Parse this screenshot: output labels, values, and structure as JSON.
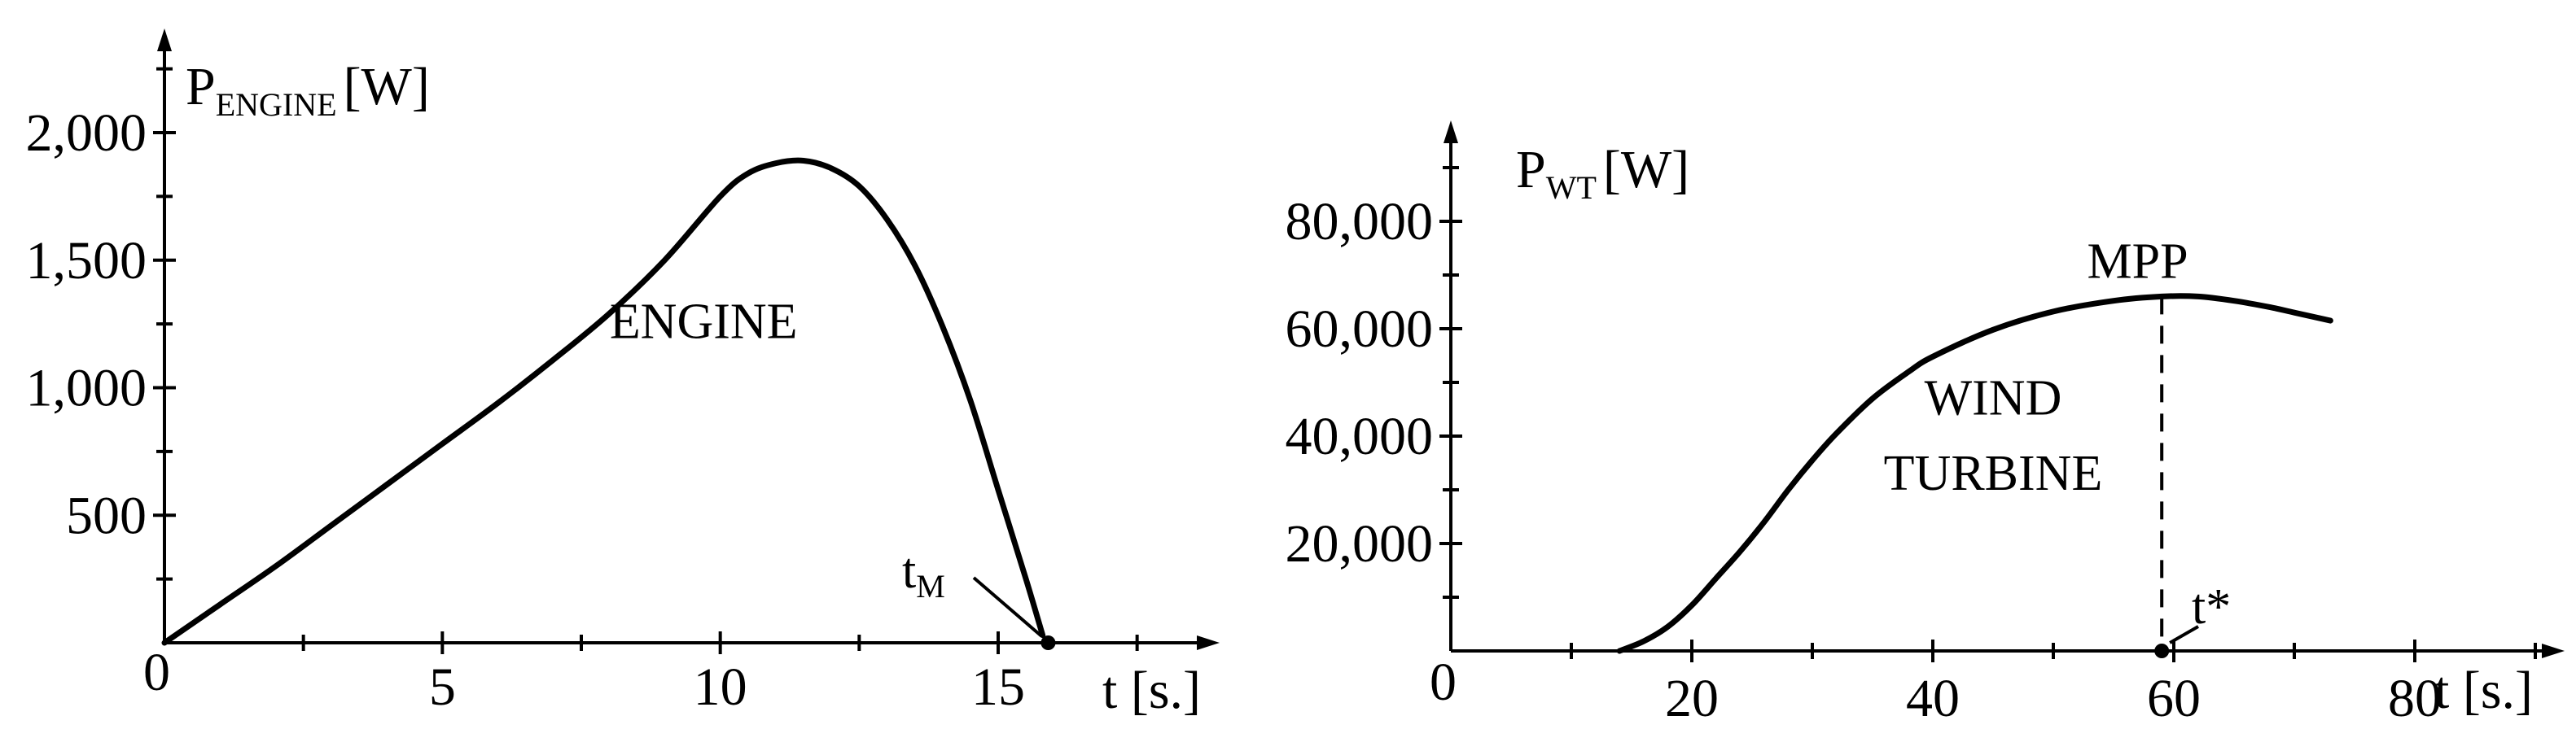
{
  "chart_data": [
    {
      "type": "line",
      "ylabel_main": "P",
      "ylabel_sub": "ENGINE",
      "ylabel_unit": "[W]",
      "xlabel": "t [s.]",
      "origin_label": "0",
      "x_ticks": [
        {
          "value": 5,
          "label": "5"
        },
        {
          "value": 10,
          "label": "10"
        },
        {
          "value": 15,
          "label": "15"
        }
      ],
      "y_ticks": [
        {
          "value": 500,
          "label": "500"
        },
        {
          "value": 1000,
          "label": "1,000"
        },
        {
          "value": 1500,
          "label": "1,500"
        },
        {
          "value": 2000,
          "label": "2,000"
        }
      ],
      "xlim": [
        0,
        19
      ],
      "ylim": [
        0,
        2400
      ],
      "minor_x_step": 2.5,
      "minor_y_step": 250,
      "series": [
        {
          "x": [
            0,
            1,
            2,
            3,
            4,
            5,
            6,
            7,
            8,
            9,
            10,
            10.5,
            11,
            11.5,
            12,
            12.5,
            13,
            13.5,
            14,
            14.5,
            15,
            15.5,
            15.8
          ],
          "y": [
            0,
            150,
            300,
            460,
            620,
            780,
            940,
            1110,
            1290,
            1500,
            1750,
            1840,
            1880,
            1890,
            1860,
            1790,
            1660,
            1480,
            1240,
            950,
            600,
            250,
            30
          ]
        }
      ],
      "annotations": {
        "region_label": {
          "text": "ENGINE",
          "x": 9.7,
          "y": 1195
        },
        "point_label_main": "t",
        "point_label_sub": "M",
        "point": {
          "x": 15.9,
          "y": 0
        }
      }
    },
    {
      "type": "line",
      "ylabel_main": "P",
      "ylabel_sub": "WT",
      "ylabel_unit": "[W]",
      "xlabel": "t [s.]",
      "origin_label": "0",
      "x_ticks": [
        {
          "value": 20,
          "label": "20"
        },
        {
          "value": 40,
          "label": "40"
        },
        {
          "value": 60,
          "label": "60"
        },
        {
          "value": 80,
          "label": "80"
        }
      ],
      "y_ticks": [
        {
          "value": 20000,
          "label": "20,000"
        },
        {
          "value": 40000,
          "label": "40,000"
        },
        {
          "value": 60000,
          "label": "60,000"
        },
        {
          "value": 80000,
          "label": "80,000"
        }
      ],
      "xlim": [
        0,
        97
      ],
      "ylim": [
        0,
        98000
      ],
      "minor_x_step": 10,
      "minor_y_step": 10000,
      "series": [
        {
          "x": [
            14,
            16,
            18,
            20,
            22,
            24,
            26,
            28,
            30,
            32,
            35,
            38,
            40,
            45,
            50,
            55,
            59,
            62,
            65,
            68,
            70,
            73
          ],
          "y": [
            0,
            1800,
            4500,
            8500,
            13500,
            18500,
            24000,
            30000,
            35500,
            40500,
            47000,
            52000,
            54800,
            59800,
            63200,
            65200,
            66000,
            66000,
            65200,
            64000,
            63000,
            61500
          ]
        }
      ],
      "annotations": {
        "region_label_line1": {
          "text": "WIND",
          "x": 45,
          "y": 44000
        },
        "region_label_line2": {
          "text": "TURBINE",
          "x": 45,
          "y": 30000
        },
        "mpp_label": {
          "text": "MPP",
          "x": 57,
          "y": 69500
        },
        "mpp_x": 59,
        "mpp_y": 66000,
        "point_label": "t*",
        "point": {
          "x": 59,
          "y": 0
        }
      }
    }
  ]
}
